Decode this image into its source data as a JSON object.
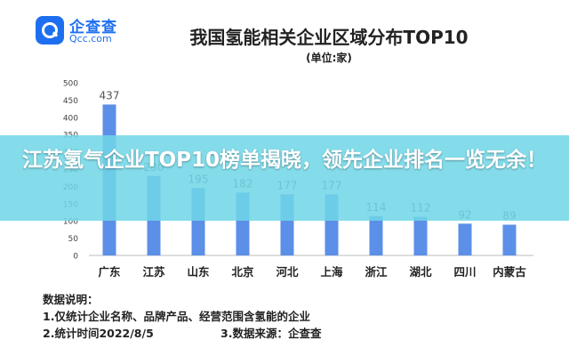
{
  "header": {
    "brand_cn": "企查查",
    "brand_en": "Qcc.com",
    "brand_color": "#1e6ff0"
  },
  "overlay": {
    "text": "江苏氢气企业TOP10榜单揭晓，领先企业排名一览无余！",
    "color": "#70d6e6"
  },
  "notes": {
    "heading": "数据说明：",
    "line1": "1.仅统计企业名称、品牌产品、经营范围含氢能的企业",
    "line2a": "2.统计时间2022/8/5",
    "line2b": "3.数据来源：企查查"
  },
  "chart_data": {
    "type": "bar",
    "title": "我国氢能相关企业区域分布TOP10",
    "subtitle": "(单位:家)",
    "categories": [
      "广东",
      "江苏",
      "山东",
      "北京",
      "河北",
      "上海",
      "浙江",
      "湖北",
      "四川",
      "内蒙古"
    ],
    "values": [
      437,
      230,
      195,
      182,
      177,
      177,
      114,
      112,
      92,
      89
    ],
    "ylim": [
      0,
      500
    ],
    "yticks": [
      0,
      50,
      100,
      150,
      200,
      250,
      300,
      350,
      400,
      450,
      500
    ],
    "grid": false,
    "bar_color": "#5b8fe8",
    "xlabel": "",
    "ylabel": ""
  }
}
